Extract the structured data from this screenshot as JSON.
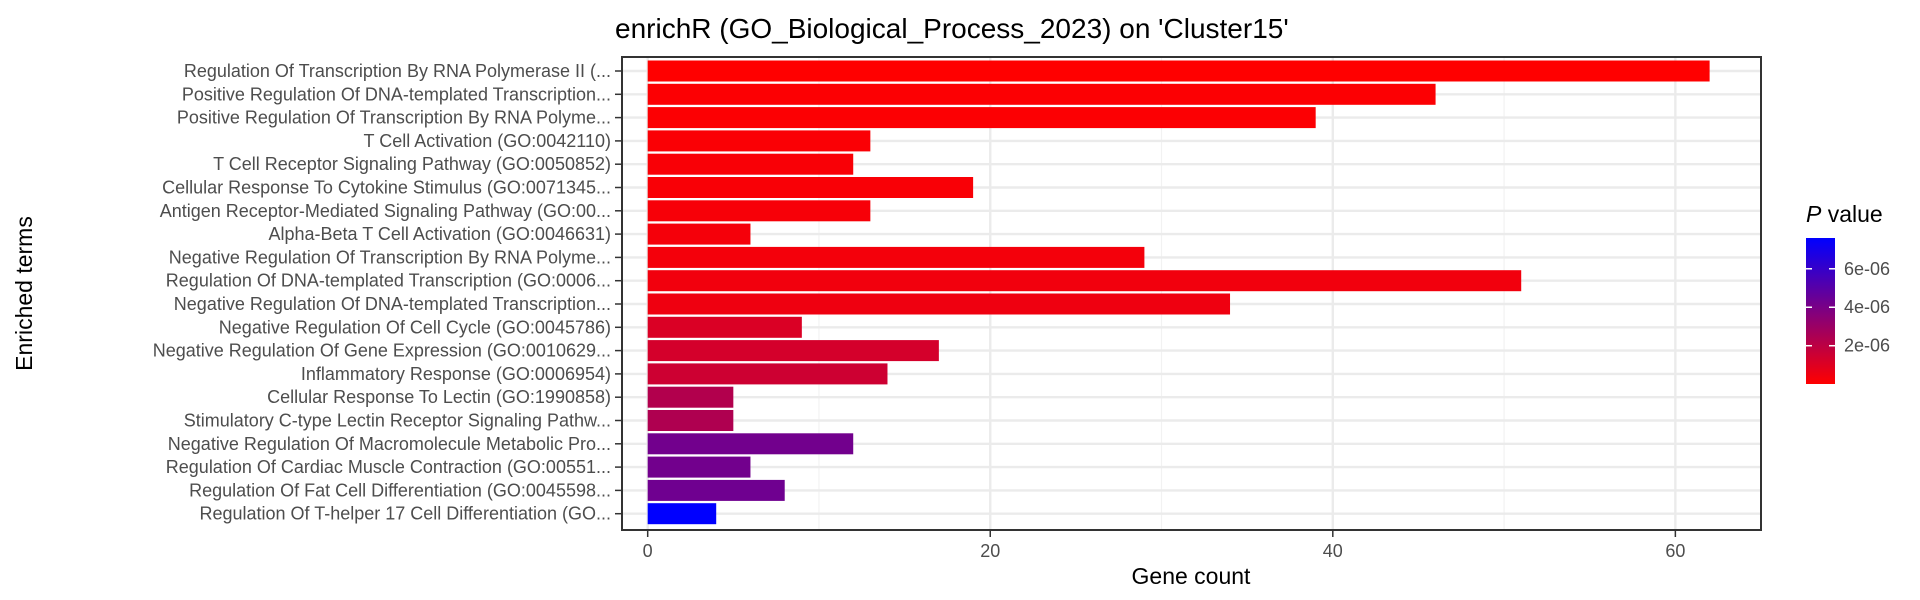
{
  "chart_data": {
    "type": "bar",
    "orientation": "horizontal",
    "title": "enrichR (GO_Biological_Process_2023) on 'Cluster15'",
    "xlabel": "Gene count",
    "ylabel": "Enriched terms",
    "xlim": [
      -1.5,
      65
    ],
    "xticks": [
      0,
      20,
      40,
      60
    ],
    "grid": true,
    "categories": [
      "Regulation Of Transcription By RNA Polymerase II (...",
      "Positive Regulation Of DNA-templated Transcription...",
      "Positive Regulation Of Transcription By RNA Polyme...",
      "T Cell Activation (GO:0042110)",
      "T Cell Receptor Signaling Pathway (GO:0050852)",
      "Cellular Response To Cytokine Stimulus (GO:0071345...",
      "Antigen Receptor-Mediated Signaling Pathway (GO:00...",
      "Alpha-Beta T Cell Activation (GO:0046631)",
      "Negative Regulation Of Transcription By RNA Polyme...",
      "Regulation Of DNA-templated Transcription (GO:0006...",
      "Negative Regulation Of DNA-templated Transcription...",
      "Negative Regulation Of Cell Cycle (GO:0045786)",
      "Negative Regulation Of Gene Expression (GO:0010629...",
      "Inflammatory Response (GO:0006954)",
      "Cellular Response To Lectin (GO:1990858)",
      "Stimulatory C-type Lectin Receptor Signaling Pathw...",
      "Negative Regulation Of Macromolecule Metabolic Pro...",
      "Regulation Of Cardiac Muscle Contraction (GO:00551...",
      "Regulation Of Fat Cell Differentiation (GO:0045598...",
      "Regulation Of T-helper 17 Cell Differentiation (GO..."
    ],
    "values": [
      62,
      46,
      39,
      13,
      12,
      19,
      13,
      6,
      29,
      51,
      34,
      9,
      17,
      14,
      5,
      5,
      12,
      6,
      8,
      4
    ],
    "p_values": [
      1e-08,
      1e-07,
      1e-07,
      1.5e-07,
      2e-07,
      2e-07,
      2.5e-07,
      3e-07,
      3.5e-07,
      4e-07,
      5e-07,
      1.1e-06,
      1.3e-06,
      1.5e-06,
      2.3e-06,
      2.4e-06,
      4.2e-06,
      4.2e-06,
      4.3e-06,
      7.6e-06
    ],
    "color_legend": {
      "title_italic": "P",
      "title_rest": " value",
      "labels": [
        "6e-06",
        "4e-06",
        "2e-06"
      ],
      "label_values": [
        6e-06,
        4e-06,
        2e-06
      ],
      "min": 1e-08,
      "max": 7.6e-06,
      "low_color": "#ff0000",
      "high_color": "#0000ff"
    },
    "legend_position": "right"
  }
}
